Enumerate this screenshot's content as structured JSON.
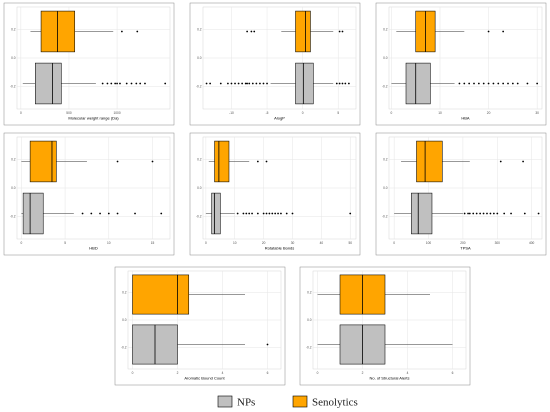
{
  "colors": {
    "np": "#c0c0c0",
    "senolytics": "#ffa500",
    "border": "#000000",
    "grid": "#e5e5e5",
    "panel_border": "#888888"
  },
  "legend": {
    "np_label": "NPs",
    "senolytics_label": "Senolytics"
  },
  "chart_data": [
    {
      "type": "boxplot",
      "xlabel": "Molecular weight range (Da)",
      "xticks": [
        0,
        500,
        1000
      ],
      "xlim": [
        -40,
        1550
      ],
      "yticks": [
        "0.2",
        "0.0",
        "-0.2"
      ],
      "series": [
        {
          "name": "Senolytics",
          "q1": 210,
          "median": 380,
          "q3": 560,
          "whisker_low": 100,
          "whisker_high": 960,
          "outliers": [
            1050,
            1210
          ]
        },
        {
          "name": "NPs",
          "q1": 150,
          "median": 330,
          "q3": 420,
          "whisker_low": 20,
          "whisker_high": 780,
          "outliers": [
            850,
            900,
            940,
            980,
            1000,
            1030,
            1100,
            1150,
            1200,
            1240,
            1290,
            1500
          ]
        }
      ]
    },
    {
      "type": "boxplot",
      "xlabel": "AlogP",
      "xticks": [
        -10,
        -5,
        0,
        5
      ],
      "xlim": [
        -14,
        7.5
      ],
      "yticks": [
        "0.2",
        "0.0",
        "-0.2"
      ],
      "series": [
        {
          "name": "Senolytics",
          "q1": -1,
          "median": 0.4,
          "q3": 1.1,
          "whisker_low": -3,
          "whisker_high": 4.3,
          "outliers": [
            -7.8,
            -7.2,
            -6.8,
            5.2,
            5.6
          ]
        },
        {
          "name": "NPs",
          "q1": -1,
          "median": 0.1,
          "q3": 1.5,
          "whisker_low": -4.5,
          "whisker_high": 4.3,
          "outliers": [
            -13.5,
            -13,
            -11.5,
            -10.5,
            -10,
            -9.5,
            -9,
            -8.5,
            -8,
            -7.8,
            -7.5,
            -7,
            -6.5,
            -6,
            -5.5,
            -5,
            4.8,
            5.2,
            5.6,
            6,
            6.5
          ]
        }
      ]
    },
    {
      "type": "boxplot",
      "xlabel": "HBA",
      "xticks": [
        0,
        10,
        20,
        30
      ],
      "xlim": [
        -0.5,
        31
      ],
      "yticks": [
        "0.2",
        "0.0",
        "-0.2"
      ],
      "series": [
        {
          "name": "Senolytics",
          "q1": 5,
          "median": 7,
          "q3": 9,
          "whisker_low": 1,
          "whisker_high": 15,
          "outliers": [
            20,
            23
          ]
        },
        {
          "name": "NPs",
          "q1": 3,
          "median": 5,
          "q3": 8,
          "whisker_low": 0,
          "whisker_high": 13,
          "outliers": [
            14,
            15,
            16,
            17,
            18,
            19,
            20,
            21,
            22,
            23,
            24,
            25,
            26,
            28,
            30
          ]
        }
      ]
    },
    {
      "type": "boxplot",
      "xlabel": "HBD",
      "xticks": [
        0,
        5,
        10,
        15
      ],
      "xlim": [
        -0.5,
        17
      ],
      "yticks": [
        "0.2",
        "0.0",
        "-0.2"
      ],
      "series": [
        {
          "name": "Senolytics",
          "q1": 1,
          "median": 3.5,
          "q3": 4,
          "whisker_low": 0,
          "whisker_high": 7.5,
          "outliers": [
            11,
            15
          ]
        },
        {
          "name": "NPs",
          "q1": 0.2,
          "median": 1,
          "q3": 2.5,
          "whisker_low": 0,
          "whisker_high": 6,
          "outliers": [
            7,
            8,
            9,
            10,
            11,
            13,
            16
          ]
        }
      ]
    },
    {
      "type": "boxplot",
      "xlabel": "Rotatable Bonds",
      "xticks": [
        0,
        10,
        20,
        30,
        40,
        50
      ],
      "xlim": [
        -1,
        52
      ],
      "yticks": [
        "0.2",
        "0.0",
        "-0.2"
      ],
      "series": [
        {
          "name": "Senolytics",
          "q1": 3,
          "median": 4.5,
          "q3": 8,
          "whisker_low": 1,
          "whisker_high": 15,
          "outliers": [
            18,
            21
          ]
        },
        {
          "name": "NPs",
          "q1": 2,
          "median": 3,
          "q3": 5,
          "whisker_low": 0,
          "whisker_high": 10,
          "outliers": [
            11,
            13,
            14,
            15,
            16,
            18,
            20,
            21,
            22,
            23,
            24,
            25,
            26,
            28,
            30,
            50
          ]
        }
      ]
    },
    {
      "type": "boxplot",
      "xlabel": "TPSA",
      "xticks": [
        0,
        100,
        200,
        300,
        400
      ],
      "xlim": [
        -15,
        430
      ],
      "yticks": [
        "0.2",
        "0.0",
        "-0.2"
      ],
      "series": [
        {
          "name": "Senolytics",
          "q1": 65,
          "median": 90,
          "q3": 140,
          "whisker_low": 20,
          "whisker_high": 220,
          "outliers": [
            310,
            375
          ]
        },
        {
          "name": "NPs",
          "q1": 50,
          "median": 70,
          "q3": 110,
          "whisker_low": 0,
          "whisker_high": 200,
          "outliers": [
            205,
            215,
            220,
            230,
            240,
            250,
            260,
            270,
            280,
            290,
            300,
            320,
            340,
            380,
            420
          ]
        }
      ]
    },
    {
      "type": "boxplot",
      "xlabel": "Aromatic Bound Count",
      "xticks": [
        0,
        2,
        4,
        6
      ],
      "xlim": [
        -0.2,
        6.6
      ],
      "yticks": [
        "0.2",
        "0.0",
        "-0.2"
      ],
      "series": [
        {
          "name": "Senolytics",
          "q1": 0,
          "median": 2,
          "q3": 2.5,
          "whisker_low": 0,
          "whisker_high": 5,
          "outliers": []
        },
        {
          "name": "NPs",
          "q1": 0,
          "median": 1,
          "q3": 2,
          "whisker_low": 0,
          "whisker_high": 5,
          "outliers": [
            6
          ]
        }
      ]
    },
    {
      "type": "boxplot",
      "xlabel": "No. of Structural Alerts",
      "xticks": [
        0,
        2,
        4,
        6
      ],
      "xlim": [
        -0.2,
        6.6
      ],
      "yticks": [
        "0.2",
        "0.0",
        "-0.2"
      ],
      "series": [
        {
          "name": "Senolytics",
          "q1": 1,
          "median": 2,
          "q3": 3,
          "whisker_low": 0,
          "whisker_high": 5,
          "outliers": []
        },
        {
          "name": "NPs",
          "q1": 1,
          "median": 2,
          "q3": 3,
          "whisker_low": 0,
          "whisker_high": 6,
          "outliers": []
        }
      ]
    }
  ]
}
